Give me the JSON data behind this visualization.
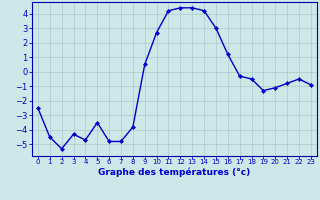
{
  "x": [
    0,
    1,
    2,
    3,
    4,
    5,
    6,
    7,
    8,
    9,
    10,
    11,
    12,
    13,
    14,
    15,
    16,
    17,
    18,
    19,
    20,
    21,
    22,
    23
  ],
  "y": [
    -2.5,
    -4.5,
    -5.3,
    -4.3,
    -4.7,
    -3.5,
    -4.8,
    -4.8,
    -3.8,
    0.5,
    2.7,
    4.2,
    4.4,
    4.4,
    4.2,
    3.0,
    1.2,
    -0.3,
    -0.5,
    -1.3,
    -1.1,
    -0.8,
    -0.5,
    -0.9
  ],
  "line_color": "#0000cc",
  "marker": "D",
  "marker_size": 2.0,
  "line_width": 1.0,
  "xlabel": "Graphe des températures (°c)",
  "xlabel_fontsize": 6.5,
  "ylabel_fontsize": 6,
  "xtick_labels": [
    "0",
    "1",
    "2",
    "3",
    "4",
    "5",
    "6",
    "7",
    "8",
    "9",
    "10",
    "11",
    "12",
    "13",
    "14",
    "15",
    "16",
    "17",
    "18",
    "19",
    "20",
    "21",
    "22",
    "23"
  ],
  "yticks": [
    -5,
    -4,
    -3,
    -2,
    -1,
    0,
    1,
    2,
    3,
    4
  ],
  "ylim": [
    -5.8,
    4.8
  ],
  "xlim": [
    -0.5,
    23.5
  ],
  "bg_color": "#cce8e8",
  "grid_color": "#aacccc",
  "tick_color": "#0000cc",
  "label_color": "#0000cc",
  "spine_color": "#0000aa"
}
